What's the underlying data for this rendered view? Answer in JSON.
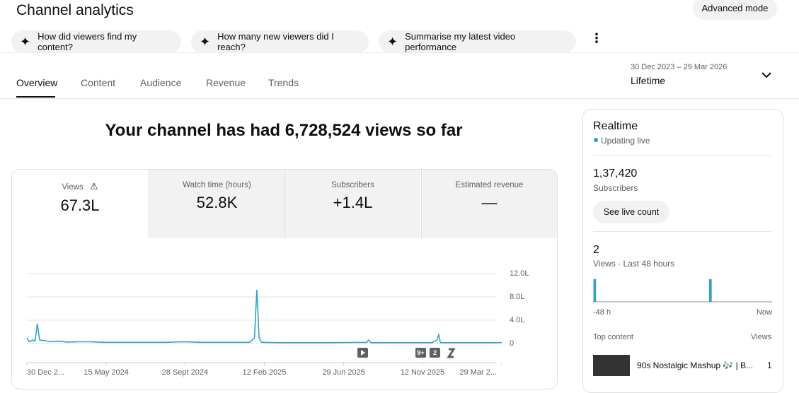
{
  "header": {
    "title": "Channel analytics",
    "advanced": "Advanced mode"
  },
  "prompts": [
    "How did viewers find my content?",
    "How many new viewers did I reach?",
    "Summarise my latest video performance"
  ],
  "tabs": [
    "Overview",
    "Content",
    "Audience",
    "Revenue",
    "Trends"
  ],
  "date_range": {
    "range": "30 Dec 2023 – 29 Mar 2026",
    "label": "Lifetime"
  },
  "headline": "Your channel has had 6,728,524 views so far",
  "metrics": [
    {
      "label": "Views",
      "value": "67.3L"
    },
    {
      "label": "Watch time (hours)",
      "value": "52.8K"
    },
    {
      "label": "Subscribers",
      "value": "+1.4L"
    },
    {
      "label": "Estimated revenue",
      "value": "—"
    }
  ],
  "chart_data": {
    "type": "line",
    "color": "#2fa3c6",
    "grid": true,
    "x": [
      0,
      4,
      10,
      14,
      18,
      22,
      30,
      40,
      55,
      70,
      90,
      110,
      130,
      160,
      200,
      240,
      270,
      300,
      340,
      385,
      393,
      397,
      401,
      405,
      440,
      480,
      520,
      587,
      590,
      594,
      640,
      700,
      708,
      711,
      714,
      760,
      820
    ],
    "values": [
      1.0,
      0.3,
      0.6,
      0.4,
      3.4,
      0.6,
      0.5,
      0.3,
      0.4,
      0.25,
      0.3,
      0.3,
      0.2,
      0.2,
      0.2,
      0.2,
      0.3,
      0.2,
      0.2,
      0.2,
      1.0,
      9.2,
      1.0,
      0.2,
      0.15,
      0.15,
      0.15,
      0.2,
      0.6,
      0.15,
      0.15,
      0.15,
      0.6,
      1.5,
      0.15,
      0.15,
      0.15
    ],
    "xlim": [
      0,
      820
    ],
    "xticks": [
      {
        "value": 0,
        "label": "30 Dec 2..."
      },
      {
        "value": 137,
        "label": "15 May 2024"
      },
      {
        "value": 273,
        "label": "28 Sept 2024"
      },
      {
        "value": 410,
        "label": "12 Feb 2025"
      },
      {
        "value": 547,
        "label": "29 Jun 2025"
      },
      {
        "value": 683,
        "label": "12 Nov 2025"
      },
      {
        "value": 820,
        "label": "29 Mar 2..."
      }
    ],
    "ylim": [
      0,
      12
    ],
    "yticks": [
      0,
      {
        "value": 4,
        "label": "4.0L"
      },
      {
        "value": 8,
        "label": "8.0L"
      },
      {
        "value": 12,
        "label": "12.0L"
      }
    ],
    "markers": [
      "9+",
      "2"
    ]
  },
  "realtime": {
    "title": "Realtime",
    "status": "Updating live",
    "subscribers": "1,37,420",
    "subscribers_label": "Subscribers",
    "button": "See live count",
    "views": "2",
    "views_label": "Views · Last 48 hours",
    "bar_values": [
      1,
      0,
      0,
      0,
      0,
      0,
      0,
      0,
      0,
      0,
      0,
      0,
      0,
      0,
      0,
      0,
      0,
      0,
      0,
      0,
      0,
      0,
      0,
      0,
      0,
      0,
      0,
      0,
      0,
      0,
      0,
      1,
      0,
      0,
      0,
      0,
      0,
      0,
      0,
      0,
      0,
      0,
      0,
      0,
      0,
      0,
      0,
      0
    ],
    "axis_start": "-48 h",
    "axis_end": "Now",
    "top_content": "Top content",
    "top_views": "Views",
    "item_title": "90s Nostalgic Mashup 🎶 | B...",
    "item_views": "1"
  }
}
